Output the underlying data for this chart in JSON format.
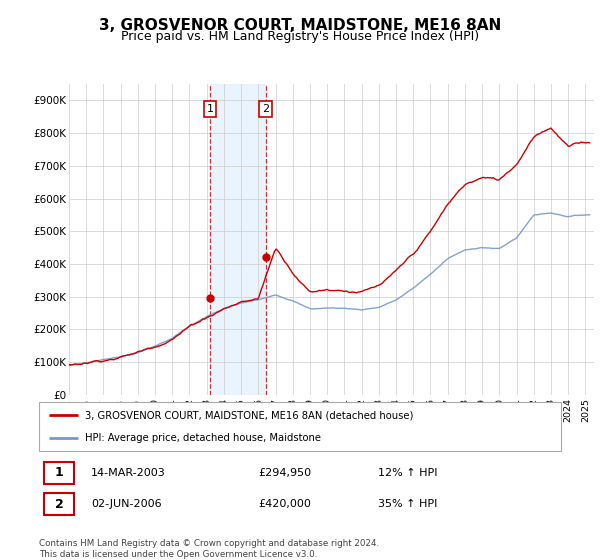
{
  "title": "3, GROSVENOR COURT, MAIDSTONE, ME16 8AN",
  "subtitle": "Price paid vs. HM Land Registry's House Price Index (HPI)",
  "title_fontsize": 11,
  "subtitle_fontsize": 9,
  "ylabel_ticks": [
    "£0",
    "£100K",
    "£200K",
    "£300K",
    "£400K",
    "£500K",
    "£600K",
    "£700K",
    "£800K",
    "£900K"
  ],
  "ytick_values": [
    0,
    100000,
    200000,
    300000,
    400000,
    500000,
    600000,
    700000,
    800000,
    900000
  ],
  "ylim": [
    0,
    950000
  ],
  "xlim_start": 1995.0,
  "xlim_end": 2025.5,
  "grid_color": "#cccccc",
  "hpi_color": "#7799cc",
  "price_color": "#cc0000",
  "transaction1_date": 2003.2,
  "transaction1_price": 294950,
  "transaction2_date": 2006.42,
  "transaction2_price": 420000,
  "shade_color": "#ddeeff",
  "shade_alpha": 0.6,
  "legend_label1": "3, GROSVENOR COURT, MAIDSTONE, ME16 8AN (detached house)",
  "legend_label2": "HPI: Average price, detached house, Maidstone",
  "table_row1_num": "1",
  "table_row1_date": "14-MAR-2003",
  "table_row1_price": "£294,950",
  "table_row1_hpi": "12% ↑ HPI",
  "table_row2_num": "2",
  "table_row2_date": "02-JUN-2006",
  "table_row2_price": "£420,000",
  "table_row2_hpi": "35% ↑ HPI",
  "footnote": "Contains HM Land Registry data © Crown copyright and database right 2024.\nThis data is licensed under the Open Government Licence v3.0."
}
